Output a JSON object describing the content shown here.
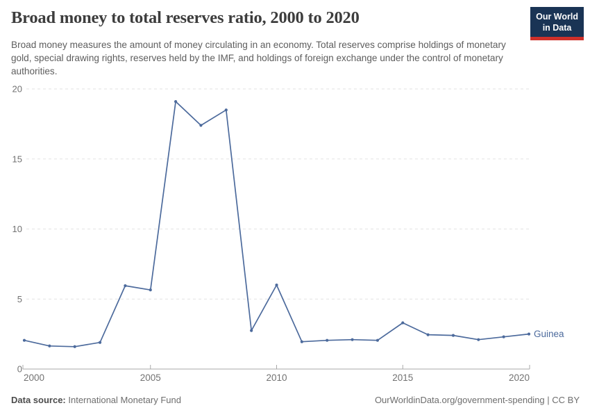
{
  "header": {
    "title": "Broad money to total reserves ratio, 2000 to 2020",
    "subtitle": "Broad money measures the amount of money circulating in an economy. Total reserves comprise holdings of monetary gold, special drawing rights, reserves held by the IMF, and holdings of foreign exchange under the control of monetary authorities.",
    "logo": {
      "line1": "Our World",
      "line2": "in Data"
    }
  },
  "chart_data": {
    "type": "line",
    "title": "Broad money to total reserves ratio, 2000 to 2020",
    "xlabel": "",
    "ylabel": "",
    "xlim": [
      2000,
      2020
    ],
    "ylim": [
      0,
      20
    ],
    "x_ticks": [
      2000,
      2005,
      2010,
      2015,
      2020
    ],
    "y_ticks": [
      0,
      5,
      10,
      15,
      20
    ],
    "grid": "horizontal-dashed",
    "legend_position": "end-of-line-label",
    "series": [
      {
        "name": "Guinea",
        "color": "#4C6A9C",
        "x": [
          2000,
          2001,
          2002,
          2003,
          2004,
          2005,
          2006,
          2007,
          2008,
          2009,
          2010,
          2011,
          2012,
          2013,
          2014,
          2015,
          2016,
          2017,
          2018,
          2019,
          2020
        ],
        "values": [
          2.05,
          1.65,
          1.6,
          1.9,
          5.95,
          5.65,
          19.1,
          17.4,
          18.5,
          2.75,
          6.0,
          1.95,
          2.05,
          2.1,
          2.05,
          3.3,
          2.45,
          2.4,
          2.1,
          2.3,
          2.5
        ]
      }
    ]
  },
  "footer": {
    "source_label": "Data source:",
    "source_value": " International Monetary Fund",
    "credit": "OurWorldinData.org/government-spending | CC BY"
  },
  "colors": {
    "line": "#4C6A9C",
    "grid": "#e2e2e2",
    "axis": "#a8a8a8",
    "tick_label": "#727272",
    "logo_bg": "#1a3455",
    "logo_red": "#cf302a"
  }
}
